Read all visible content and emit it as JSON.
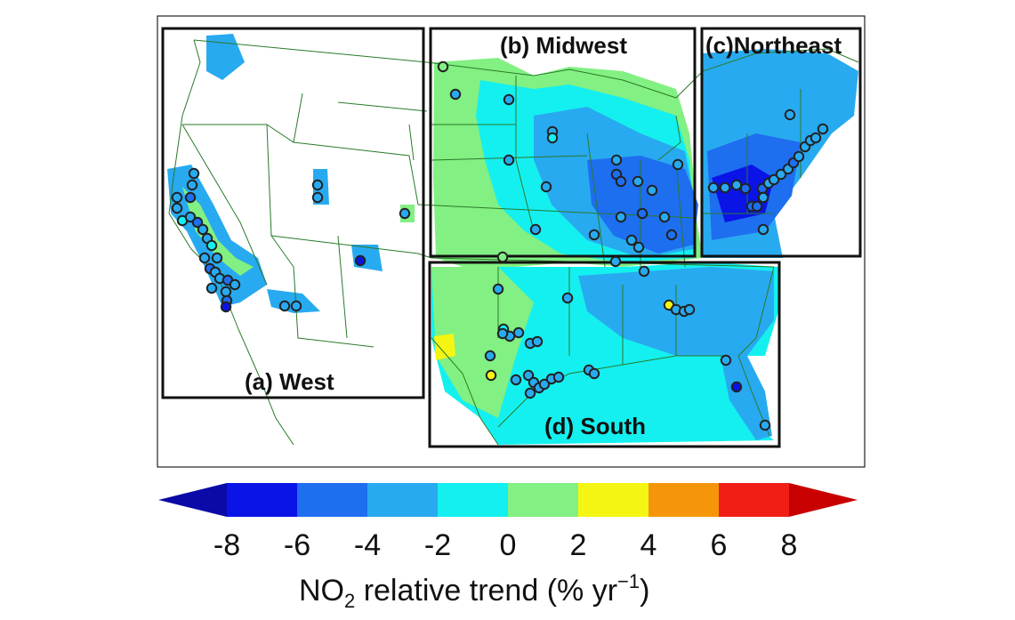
{
  "map": {
    "regions": [
      {
        "id": "west",
        "label": "(a) West"
      },
      {
        "id": "midwest",
        "label": "(b) Midwest"
      },
      {
        "id": "northeast",
        "label": "(c)Northeast"
      },
      {
        "id": "south",
        "label": "(d) South"
      }
    ],
    "station_markers": {
      "west": 38,
      "midwest": 34,
      "northeast": 30,
      "south": 36
    }
  },
  "colorbar": {
    "title_main": "NO",
    "title_sub": "2",
    "title_rest": " relative trend (%  yr",
    "title_sup": "−1",
    "title_close": ")",
    "ticks": [
      "-8",
      "-6",
      "-4",
      "-2",
      "0",
      "2",
      "4",
      "6",
      "8"
    ],
    "colors": {
      "lt_-8": "#0a0aa8",
      "-8_-6": "#0a14e6",
      "-6_-4": "#1e6ef0",
      "-4_-2": "#28aaf0",
      "-2_0": "#14f0f0",
      "0_2": "#82f082",
      "2_4": "#f5f514",
      "4_6": "#f5960a",
      "6_8": "#f01e14",
      "gt_8": "#c80000"
    }
  }
}
